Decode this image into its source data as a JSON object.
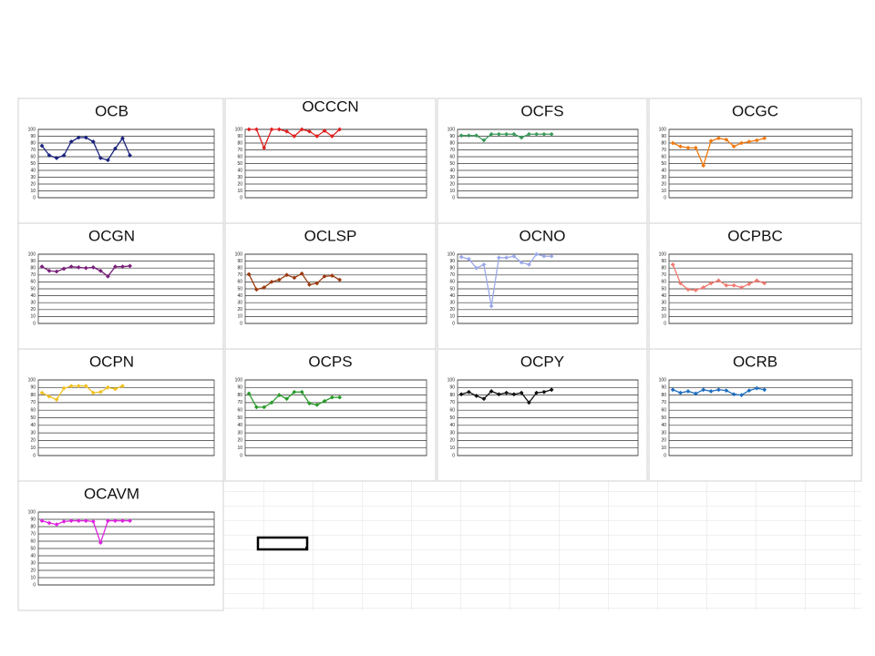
{
  "chart_data": [
    {
      "type": "line",
      "title": "OCB",
      "color": "#1a237e",
      "categories": [
        null,
        null,
        null,
        null,
        null,
        null,
        null,
        null,
        null,
        null,
        null,
        null,
        null,
        null,
        null,
        null,
        null,
        null,
        null,
        null,
        null,
        null,
        null,
        null
      ],
      "values": [
        76,
        62,
        58,
        62,
        82,
        88,
        88,
        82,
        58,
        55,
        72,
        87,
        62,
        null,
        null,
        null,
        null,
        null,
        null,
        null,
        null,
        null,
        null,
        null
      ],
      "ylim": [
        0,
        100
      ],
      "yticks": [
        0,
        10,
        20,
        30,
        40,
        50,
        60,
        70,
        80,
        90,
        100
      ],
      "grid": true
    },
    {
      "type": "line",
      "title": "OCCCN",
      "color": "#e02020",
      "categories": [
        null,
        null,
        null,
        null,
        null,
        null,
        null,
        null,
        null,
        null,
        null,
        null,
        null,
        null,
        null,
        null,
        null,
        null,
        null,
        null,
        null,
        null,
        null,
        null
      ],
      "values": [
        100,
        100,
        73,
        100,
        100,
        97,
        90,
        100,
        97,
        90,
        98,
        90,
        100,
        null,
        null,
        null,
        null,
        null,
        null,
        null,
        null,
        null,
        null,
        null
      ],
      "ylim": [
        0,
        100
      ],
      "yticks": [
        0,
        10,
        20,
        30,
        40,
        50,
        60,
        70,
        80,
        90,
        100
      ],
      "grid": true
    },
    {
      "type": "line",
      "title": "OCFS",
      "color": "#3a9a5a",
      "categories": [
        null,
        null,
        null,
        null,
        null,
        null,
        null,
        null,
        null,
        null,
        null,
        null,
        null,
        null,
        null,
        null,
        null,
        null,
        null,
        null,
        null,
        null,
        null,
        null
      ],
      "values": [
        91,
        91,
        91,
        84,
        93,
        93,
        93,
        93,
        88,
        93,
        93,
        93,
        93,
        null,
        null,
        null,
        null,
        null,
        null,
        null,
        null,
        null,
        null,
        null
      ],
      "ylim": [
        0,
        100
      ],
      "yticks": [
        0,
        10,
        20,
        30,
        40,
        50,
        60,
        70,
        80,
        90,
        100
      ],
      "grid": true
    },
    {
      "type": "line",
      "title": "OCGC",
      "color": "#f07a10",
      "categories": [
        null,
        null,
        null,
        null,
        null,
        null,
        null,
        null,
        null,
        null,
        null,
        null,
        null,
        null,
        null,
        null,
        null,
        null,
        null,
        null,
        null,
        null,
        null,
        null
      ],
      "values": [
        80,
        75,
        73,
        73,
        47,
        83,
        87,
        85,
        75,
        80,
        82,
        84,
        87,
        null,
        null,
        null,
        null,
        null,
        null,
        null,
        null,
        null,
        null,
        null
      ],
      "ylim": [
        0,
        100
      ],
      "yticks": [
        0,
        10,
        20,
        30,
        40,
        50,
        60,
        70,
        80,
        90,
        100
      ],
      "grid": true
    },
    {
      "type": "line",
      "title": "OCGN",
      "color": "#7a1f7a",
      "categories": [
        null,
        null,
        null,
        null,
        null,
        null,
        null,
        null,
        null,
        null,
        null,
        null,
        null,
        null,
        null,
        null,
        null,
        null,
        null,
        null,
        null,
        null,
        null,
        null
      ],
      "values": [
        82,
        76,
        75,
        79,
        82,
        81,
        80,
        81,
        76,
        68,
        82,
        82,
        83,
        null,
        null,
        null,
        null,
        null,
        null,
        null,
        null,
        null,
        null,
        null
      ],
      "ylim": [
        0,
        100
      ],
      "yticks": [
        0,
        10,
        20,
        30,
        40,
        50,
        60,
        70,
        80,
        90,
        100
      ],
      "grid": true
    },
    {
      "type": "line",
      "title": "OCLSP",
      "color": "#9a3a10",
      "categories": [
        null,
        null,
        null,
        null,
        null,
        null,
        null,
        null,
        null,
        null,
        null,
        null,
        null,
        null,
        null,
        null,
        null,
        null,
        null,
        null,
        null,
        null,
        null,
        null
      ],
      "values": [
        71,
        49,
        52,
        60,
        63,
        70,
        66,
        72,
        56,
        58,
        68,
        69,
        63,
        null,
        null,
        null,
        null,
        null,
        null,
        null,
        null,
        null,
        null,
        null
      ],
      "ylim": [
        0,
        100
      ],
      "yticks": [
        0,
        10,
        20,
        30,
        40,
        50,
        60,
        70,
        80,
        90,
        100
      ],
      "grid": true
    },
    {
      "type": "line",
      "title": "OCNO",
      "color": "#9aa8e8",
      "categories": [
        null,
        null,
        null,
        null,
        null,
        null,
        null,
        null,
        null,
        null,
        null,
        null,
        null,
        null,
        null,
        null,
        null,
        null,
        null,
        null,
        null,
        null,
        null,
        null
      ],
      "values": [
        96,
        93,
        80,
        85,
        25,
        95,
        95,
        97,
        88,
        85,
        100,
        97,
        97,
        null,
        null,
        null,
        null,
        null,
        null,
        null,
        null,
        null,
        null,
        null
      ],
      "ylim": [
        0,
        100
      ],
      "yticks": [
        0,
        10,
        20,
        30,
        40,
        50,
        60,
        70,
        80,
        90,
        100
      ],
      "grid": true
    },
    {
      "type": "line",
      "title": "OCPBC",
      "color": "#f07a70",
      "categories": [
        null,
        null,
        null,
        null,
        null,
        null,
        null,
        null,
        null,
        null,
        null,
        null,
        null,
        null,
        null,
        null,
        null,
        null,
        null,
        null,
        null,
        null,
        null,
        null
      ],
      "values": [
        85,
        58,
        49,
        48,
        52,
        58,
        62,
        55,
        55,
        52,
        57,
        62,
        58,
        null,
        null,
        null,
        null,
        null,
        null,
        null,
        null,
        null,
        null,
        null
      ],
      "ylim": [
        0,
        100
      ],
      "yticks": [
        0,
        10,
        20,
        30,
        40,
        50,
        60,
        70,
        80,
        90,
        100
      ],
      "grid": true
    },
    {
      "type": "line",
      "title": "OCPN",
      "color": "#f0c020",
      "categories": [
        null,
        null,
        null,
        null,
        null,
        null,
        null,
        null,
        null,
        null,
        null,
        null,
        null,
        null,
        null,
        null,
        null,
        null,
        null,
        null,
        null,
        null,
        null,
        null
      ],
      "values": [
        83,
        78,
        74,
        89,
        92,
        92,
        92,
        83,
        84,
        90,
        88,
        92,
        null,
        null,
        null,
        null,
        null,
        null,
        null,
        null,
        null,
        null,
        null,
        null
      ],
      "ylim": [
        0,
        100
      ],
      "yticks": [
        0,
        10,
        20,
        30,
        40,
        50,
        60,
        70,
        80,
        90,
        100
      ],
      "grid": true
    },
    {
      "type": "line",
      "title": "OCPS",
      "color": "#2a9a2a",
      "categories": [
        null,
        null,
        null,
        null,
        null,
        null,
        null,
        null,
        null,
        null,
        null,
        null,
        null,
        null,
        null,
        null,
        null,
        null,
        null,
        null,
        null,
        null,
        null,
        null
      ],
      "values": [
        82,
        64,
        64,
        70,
        80,
        75,
        84,
        84,
        69,
        67,
        72,
        77,
        77,
        null,
        null,
        null,
        null,
        null,
        null,
        null,
        null,
        null,
        null,
        null
      ],
      "ylim": [
        0,
        100
      ],
      "yticks": [
        0,
        10,
        20,
        30,
        40,
        50,
        60,
        70,
        80,
        90,
        100
      ],
      "grid": true
    },
    {
      "type": "line",
      "title": "OCPY",
      "color": "#111111",
      "categories": [
        null,
        null,
        null,
        null,
        null,
        null,
        null,
        null,
        null,
        null,
        null,
        null,
        null,
        null,
        null,
        null,
        null,
        null,
        null,
        null,
        null,
        null,
        null,
        null
      ],
      "values": [
        81,
        84,
        79,
        75,
        85,
        81,
        83,
        81,
        83,
        70,
        83,
        84,
        87,
        null,
        null,
        null,
        null,
        null,
        null,
        null,
        null,
        null,
        null,
        null
      ],
      "ylim": [
        0,
        100
      ],
      "yticks": [
        0,
        10,
        20,
        30,
        40,
        50,
        60,
        70,
        80,
        90,
        100
      ],
      "grid": true
    },
    {
      "type": "line",
      "title": "OCRB",
      "color": "#1f6fc0",
      "categories": [
        null,
        null,
        null,
        null,
        null,
        null,
        null,
        null,
        null,
        null,
        null,
        null,
        null,
        null,
        null,
        null,
        null,
        null,
        null,
        null,
        null,
        null,
        null,
        null
      ],
      "values": [
        87,
        83,
        85,
        82,
        87,
        85,
        87,
        86,
        81,
        80,
        86,
        89,
        87,
        null,
        null,
        null,
        null,
        null,
        null,
        null,
        null,
        null,
        null,
        null
      ],
      "ylim": [
        0,
        100
      ],
      "yticks": [
        0,
        10,
        20,
        30,
        40,
        50,
        60,
        70,
        80,
        90,
        100
      ],
      "grid": true
    },
    {
      "type": "line",
      "title": "OCAVM",
      "color": "#e020e0",
      "categories": [
        null,
        null,
        null,
        null,
        null,
        null,
        null,
        null,
        null,
        null,
        null,
        null,
        null,
        null,
        null,
        null,
        null,
        null,
        null,
        null,
        null,
        null,
        null,
        null
      ],
      "values": [
        88,
        85,
        83,
        87,
        88,
        88,
        88,
        87,
        58,
        88,
        88,
        88,
        88,
        null,
        null,
        null,
        null,
        null,
        null,
        null,
        null,
        null,
        null,
        null
      ],
      "ylim": [
        0,
        100
      ],
      "yticks": [
        0,
        10,
        20,
        30,
        40,
        50,
        60,
        70,
        80,
        90,
        100
      ],
      "grid": true
    }
  ]
}
